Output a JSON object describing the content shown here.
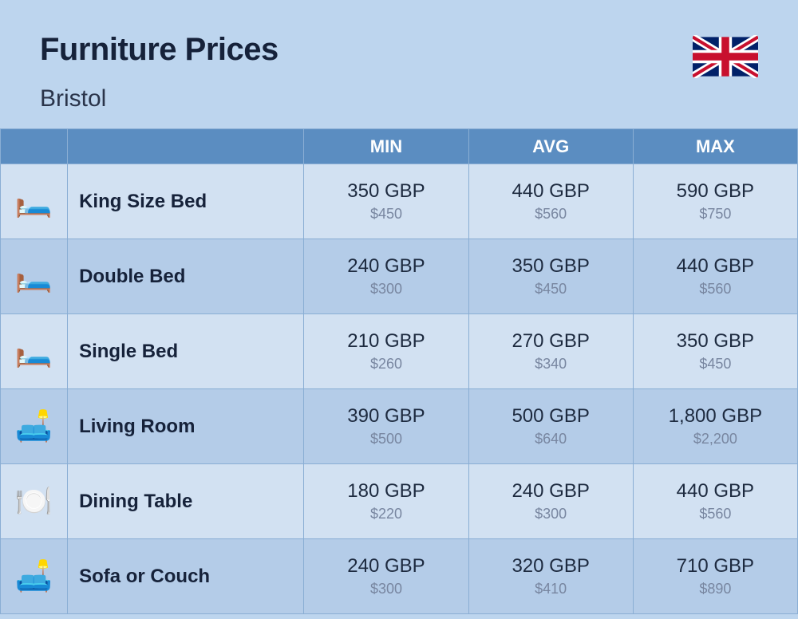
{
  "header": {
    "title": "Furniture Prices",
    "subtitle": "Bristol"
  },
  "columns": {
    "min": "MIN",
    "avg": "AVG",
    "max": "MAX"
  },
  "rows": [
    {
      "icon": "🛏️",
      "name": "King Size Bed",
      "min_primary": "350 GBP",
      "min_secondary": "$450",
      "avg_primary": "440 GBP",
      "avg_secondary": "$560",
      "max_primary": "590 GBP",
      "max_secondary": "$750"
    },
    {
      "icon": "🛏️",
      "name": "Double Bed",
      "min_primary": "240 GBP",
      "min_secondary": "$300",
      "avg_primary": "350 GBP",
      "avg_secondary": "$450",
      "max_primary": "440 GBP",
      "max_secondary": "$560"
    },
    {
      "icon": "🛏️",
      "name": "Single Bed",
      "min_primary": "210 GBP",
      "min_secondary": "$260",
      "avg_primary": "270 GBP",
      "avg_secondary": "$340",
      "max_primary": "350 GBP",
      "max_secondary": "$450"
    },
    {
      "icon": "🛋️",
      "name": "Living Room",
      "min_primary": "390 GBP",
      "min_secondary": "$500",
      "avg_primary": "500 GBP",
      "avg_secondary": "$640",
      "max_primary": "1,800 GBP",
      "max_secondary": "$2,200"
    },
    {
      "icon": "🍽️",
      "name": "Dining Table",
      "min_primary": "180 GBP",
      "min_secondary": "$220",
      "avg_primary": "240 GBP",
      "avg_secondary": "$300",
      "max_primary": "440 GBP",
      "max_secondary": "$560"
    },
    {
      "icon": "🛋️",
      "name": "Sofa or Couch",
      "min_primary": "240 GBP",
      "min_secondary": "$300",
      "avg_primary": "320 GBP",
      "avg_secondary": "$410",
      "max_primary": "710 GBP",
      "max_secondary": "$890"
    }
  ],
  "styling": {
    "page_bg": "#bdd5ee",
    "header_bg": "#5b8dc1",
    "header_text": "#ffffff",
    "row_odd_bg": "#d2e1f2",
    "row_even_bg": "#b4cce8",
    "border_color": "#8aaed4",
    "title_color": "#16223a",
    "primary_text_color": "#1d2a3f",
    "secondary_text_color": "#7886a0",
    "title_fontsize": 40,
    "subtitle_fontsize": 30,
    "header_fontsize": 22,
    "name_fontsize": 24,
    "primary_fontsize": 24,
    "secondary_fontsize": 18
  }
}
